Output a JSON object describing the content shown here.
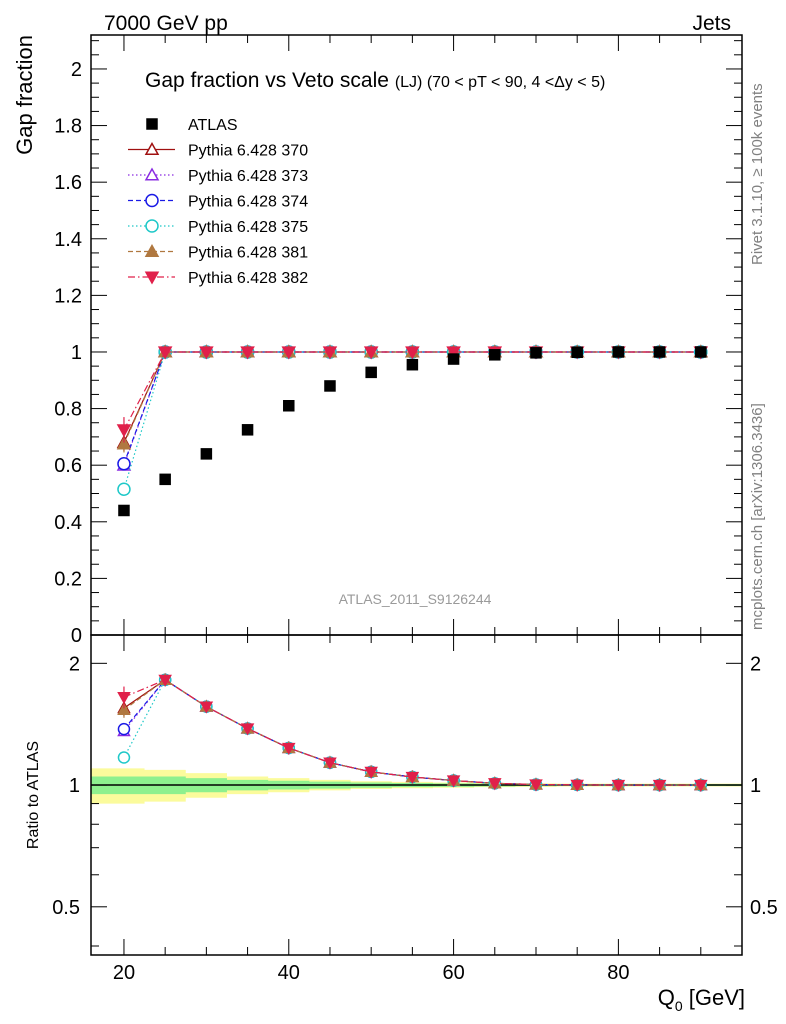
{
  "header": {
    "left": "7000 GeV pp",
    "right": "Jets"
  },
  "side_texts": {
    "rivet": "Rivet 3.1.10, ≥ 100k events",
    "mcplots": "mcplots.cern.ch [arXiv:1306.3436]"
  },
  "chart_data": [
    {
      "type": "scatter",
      "panel": "main",
      "title": "Gap fraction vs Veto scale",
      "subtitle": "(LJ) (70 < pT <  90, 4 <Δy < 5)",
      "watermark": "ATLAS_2011_S9126244",
      "ylabel": "Gap fraction",
      "xlim": [
        16,
        95
      ],
      "ylim": [
        0,
        2.12
      ],
      "x_ticks": [
        20,
        40,
        60,
        80
      ],
      "y_ticks": [
        0,
        0.2,
        0.4,
        0.6,
        0.8,
        1,
        1.2,
        1.4,
        1.6,
        1.8,
        2
      ],
      "y_tick_labels": [
        "0",
        "0.2",
        "0.4",
        "0.6",
        "0.8",
        "1",
        "1.2",
        "1.4",
        "1.6",
        "1.8",
        "2"
      ],
      "legend_position": "top-left",
      "x": [
        20,
        25,
        30,
        35,
        40,
        45,
        50,
        55,
        60,
        65,
        70,
        75,
        80,
        85,
        90
      ],
      "series": [
        {
          "name": "ATLAS",
          "color": "#000000",
          "marker": "square-filled",
          "line": "none",
          "values": [
            0.44,
            0.55,
            0.64,
            0.725,
            0.81,
            0.88,
            0.928,
            0.955,
            0.975,
            0.99,
            0.997,
            0.999,
            1.0,
            1.0,
            1.0
          ]
        },
        {
          "name": "Pythia 6.428 370",
          "color": "#a01010",
          "marker": "triangle-up-open",
          "line": "solid",
          "values": [
            0.68,
            1.0,
            1.0,
            1.0,
            1.0,
            1.0,
            1.0,
            1.0,
            1.0,
            1.0,
            1.0,
            1.0,
            1.0,
            1.0,
            1.0
          ]
        },
        {
          "name": "Pythia 6.428 373",
          "color": "#8a2be2",
          "marker": "triangle-up-open",
          "line": "dotted",
          "values": [
            0.6,
            1.0,
            1.0,
            1.0,
            1.0,
            1.0,
            1.0,
            1.0,
            1.0,
            1.0,
            1.0,
            1.0,
            1.0,
            1.0,
            1.0
          ]
        },
        {
          "name": "Pythia 6.428 374",
          "color": "#1a1ae6",
          "marker": "circle-open",
          "line": "dashed",
          "values": [
            0.605,
            1.0,
            1.0,
            1.0,
            1.0,
            1.0,
            1.0,
            1.0,
            1.0,
            1.0,
            1.0,
            1.0,
            1.0,
            1.0,
            1.0
          ]
        },
        {
          "name": "Pythia 6.428 375",
          "color": "#1ec8c8",
          "marker": "circle-open",
          "line": "dotted",
          "values": [
            0.515,
            1.0,
            1.0,
            1.0,
            1.0,
            1.0,
            1.0,
            1.0,
            1.0,
            1.0,
            1.0,
            1.0,
            1.0,
            1.0,
            1.0
          ]
        },
        {
          "name": "Pythia 6.428 381",
          "color": "#b07840",
          "marker": "triangle-up-filled",
          "line": "dashed",
          "values": [
            0.675,
            1.0,
            1.0,
            1.0,
            1.0,
            1.0,
            1.0,
            1.0,
            1.0,
            1.0,
            1.0,
            1.0,
            1.0,
            1.0,
            1.0
          ]
        },
        {
          "name": "Pythia 6.428 382",
          "color": "#e0204a",
          "marker": "triangle-down-filled",
          "line": "dashdot",
          "values": [
            0.725,
            1.0,
            1.0,
            1.0,
            1.0,
            1.0,
            1.0,
            1.0,
            1.0,
            1.0,
            1.0,
            1.0,
            1.0,
            1.0,
            1.0
          ]
        }
      ],
      "error_bars_first_point": {
        "Pythia 6.428 382": 0.045,
        "Pythia 6.428 370": 0.03,
        "Pythia 6.428 381": 0.03
      }
    },
    {
      "type": "line",
      "panel": "ratio",
      "ylabel": "Ratio to ATLAS",
      "xlabel": "Q0 [GeV]",
      "xlabel_main": "Q",
      "xlabel_sub": "0",
      "xlabel_unit": " [GeV]",
      "xlim": [
        16,
        95
      ],
      "ylim": [
        0.38,
        2.35
      ],
      "y_scale": "log",
      "y_ticks": [
        0.5,
        1,
        2
      ],
      "y_tick_labels": [
        "0.5",
        "1",
        "2"
      ],
      "x_ticks": [
        20,
        40,
        60,
        80
      ],
      "x_tick_labels": [
        "20",
        "40",
        "60",
        "80"
      ],
      "x": [
        20,
        25,
        30,
        35,
        40,
        45,
        50,
        55,
        60,
        65,
        70,
        75,
        80,
        85,
        90
      ],
      "bands": {
        "green_half_width": [
          0.05,
          0.05,
          0.04,
          0.03,
          0.025,
          0.02,
          0.015,
          0.012,
          0.01,
          0.008,
          0.006,
          0.005,
          0.005,
          0.005,
          0.005
        ],
        "yellow_half_width": [
          0.1,
          0.09,
          0.07,
          0.05,
          0.04,
          0.03,
          0.022,
          0.018,
          0.015,
          0.012,
          0.01,
          0.008,
          0.008,
          0.008,
          0.008
        ]
      },
      "series": [
        {
          "name": "Pythia 6.428 370",
          "values": [
            1.55,
            1.82,
            1.563,
            1.38,
            1.235,
            1.136,
            1.078,
            1.047,
            1.026,
            1.01,
            1.003,
            1.001,
            1.0,
            1.0,
            1.0
          ]
        },
        {
          "name": "Pythia 6.428 373",
          "values": [
            1.36,
            1.82,
            1.563,
            1.38,
            1.235,
            1.136,
            1.078,
            1.047,
            1.026,
            1.01,
            1.003,
            1.001,
            1.0,
            1.0,
            1.0
          ]
        },
        {
          "name": "Pythia 6.428 374",
          "values": [
            1.375,
            1.82,
            1.563,
            1.38,
            1.235,
            1.136,
            1.078,
            1.047,
            1.026,
            1.01,
            1.003,
            1.001,
            1.0,
            1.0,
            1.0
          ]
        },
        {
          "name": "Pythia 6.428 375",
          "values": [
            1.17,
            1.82,
            1.563,
            1.38,
            1.235,
            1.136,
            1.078,
            1.047,
            1.026,
            1.01,
            1.003,
            1.001,
            1.0,
            1.0,
            1.0
          ]
        },
        {
          "name": "Pythia 6.428 381",
          "values": [
            1.535,
            1.82,
            1.563,
            1.38,
            1.235,
            1.136,
            1.078,
            1.047,
            1.026,
            1.01,
            1.003,
            1.001,
            1.0,
            1.0,
            1.0
          ]
        },
        {
          "name": "Pythia 6.428 382",
          "values": [
            1.65,
            1.82,
            1.563,
            1.38,
            1.235,
            1.136,
            1.078,
            1.047,
            1.026,
            1.01,
            1.003,
            1.001,
            1.0,
            1.0,
            1.0
          ]
        }
      ]
    }
  ]
}
